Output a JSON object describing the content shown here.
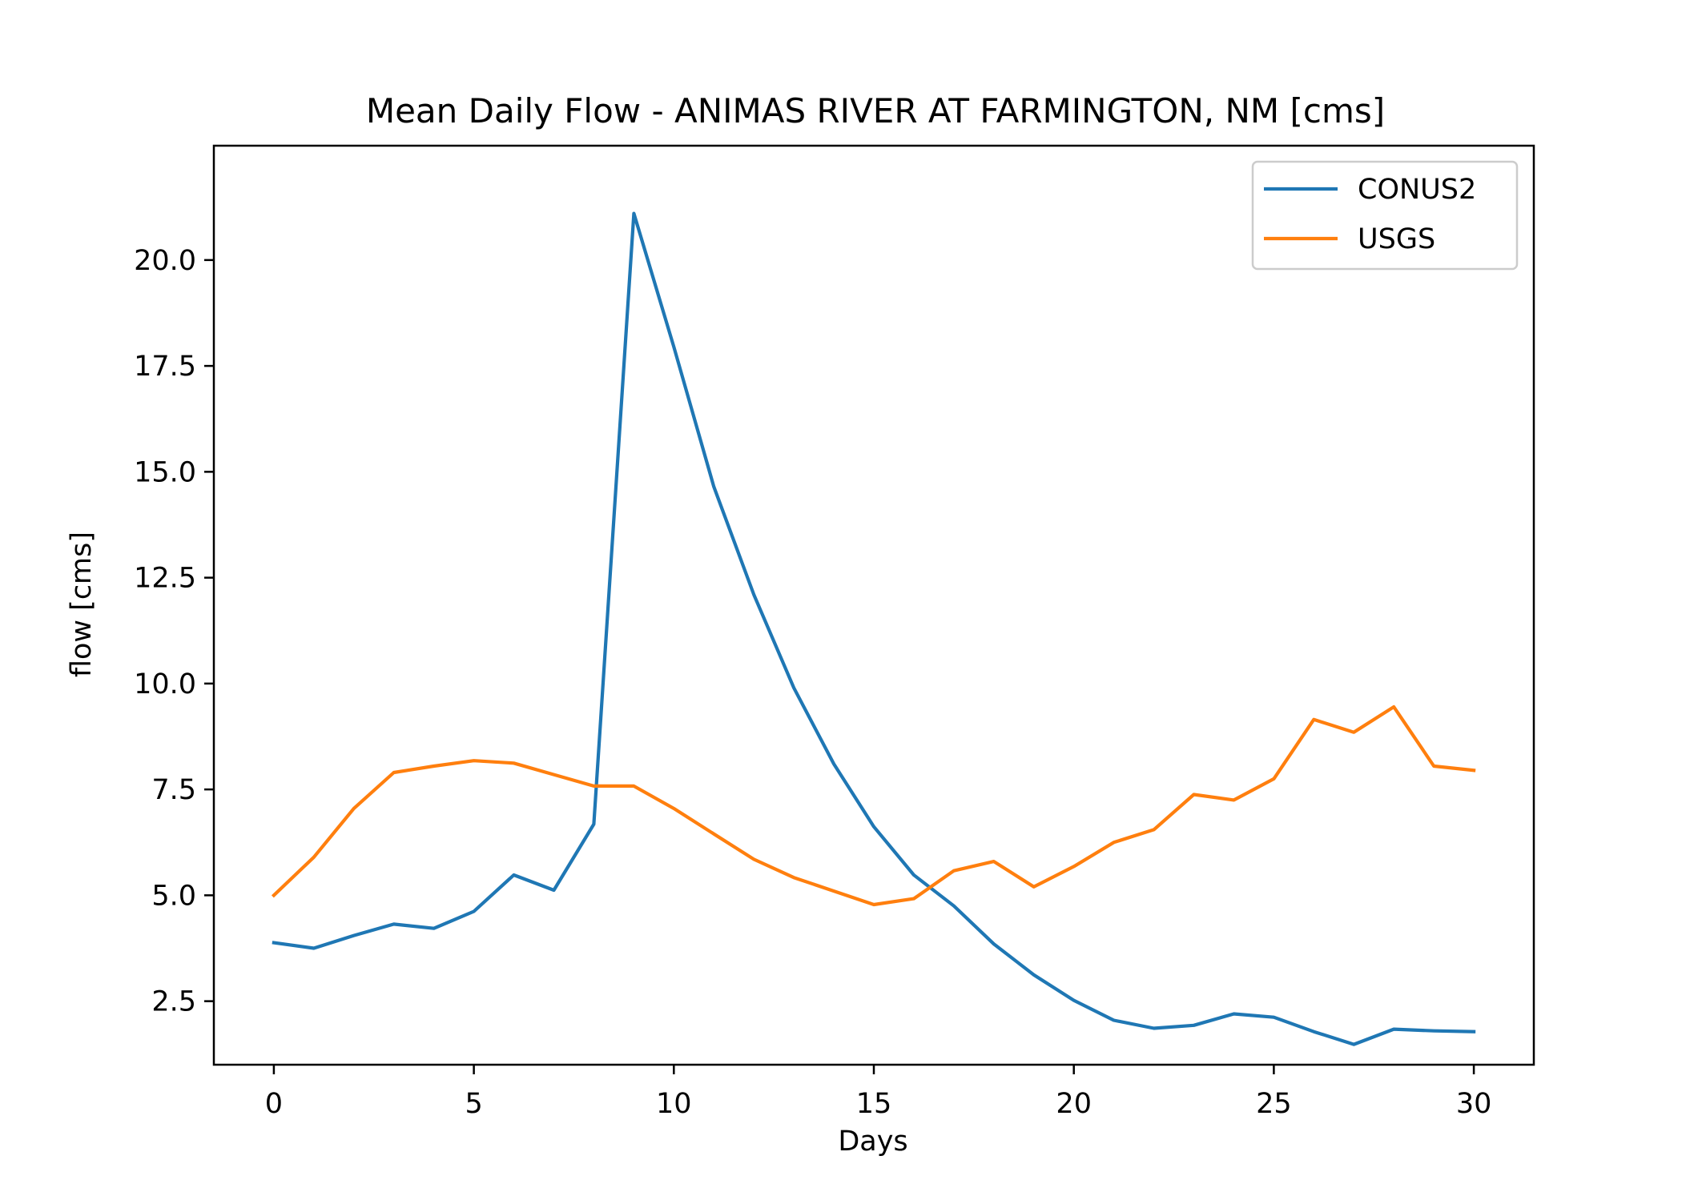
{
  "chart_data": {
    "type": "line",
    "title": "Mean Daily Flow - ANIMAS RIVER AT FARMINGTON, NM [cms]",
    "xlabel": "Days",
    "ylabel": "flow [cms]",
    "xlim": [
      -1.5,
      31.5
    ],
    "ylim": [
      1.0,
      22.7
    ],
    "x_ticks": [
      0,
      5,
      10,
      15,
      20,
      25,
      30
    ],
    "x_tick_labels": [
      "0",
      "5",
      "10",
      "15",
      "20",
      "25",
      "30"
    ],
    "y_ticks": [
      2.5,
      5.0,
      7.5,
      10.0,
      12.5,
      15.0,
      17.5,
      20.0
    ],
    "y_tick_labels": [
      "2.5",
      "5.0",
      "7.5",
      "10.0",
      "12.5",
      "15.0",
      "17.5",
      "20.0"
    ],
    "grid": false,
    "legend_position": "top-right",
    "x": [
      0,
      1,
      2,
      3,
      4,
      5,
      6,
      7,
      8,
      9,
      10,
      11,
      12,
      13,
      14,
      15,
      16,
      17,
      18,
      19,
      20,
      21,
      22,
      23,
      24,
      25,
      26,
      27,
      28,
      29,
      30
    ],
    "series": [
      {
        "name": "CONUS2",
        "color": "#1f77b4",
        "values": [
          3.88,
          3.75,
          4.05,
          4.32,
          4.22,
          4.62,
          5.48,
          5.12,
          6.68,
          21.1,
          17.95,
          14.65,
          12.1,
          9.9,
          8.1,
          6.62,
          5.48,
          4.75,
          3.85,
          3.12,
          2.52,
          2.05,
          1.86,
          1.93,
          2.2,
          2.12,
          1.78,
          1.48,
          1.84,
          1.8,
          1.78
        ]
      },
      {
        "name": "USGS",
        "color": "#ff7f0e",
        "values": [
          5.0,
          5.9,
          7.05,
          7.9,
          8.05,
          8.18,
          8.12,
          7.85,
          7.58,
          7.58,
          7.05,
          6.45,
          5.85,
          5.42,
          5.1,
          4.78,
          4.92,
          5.58,
          5.8,
          5.2,
          5.68,
          6.25,
          6.55,
          7.38,
          7.25,
          7.75,
          9.15,
          8.85,
          9.45,
          8.05,
          7.95
        ]
      }
    ]
  }
}
